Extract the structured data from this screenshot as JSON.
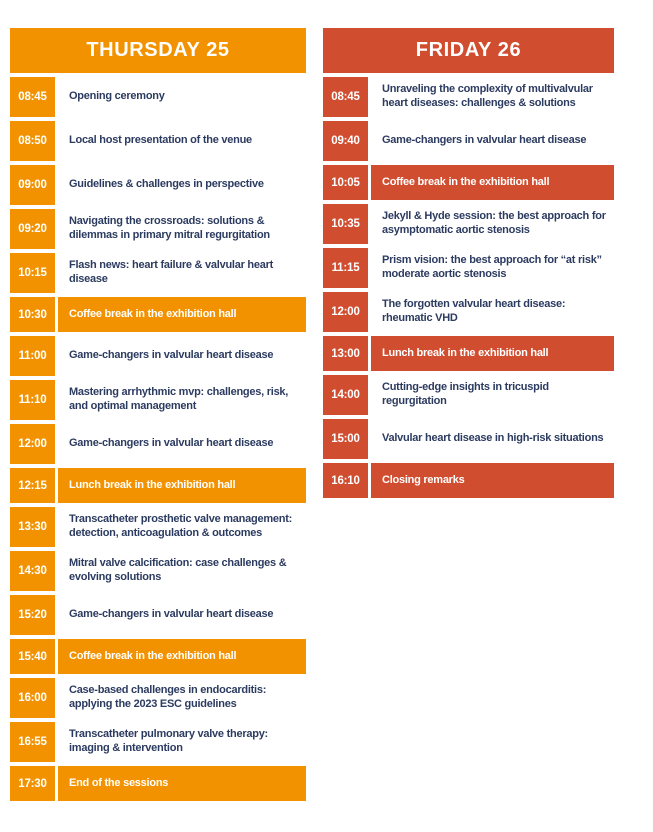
{
  "meta": {
    "background": "#ffffff",
    "text_color": "#2c3b60"
  },
  "columns": [
    {
      "id": "thursday",
      "title": "THURSDAY 25",
      "accent": "#f39200",
      "rows": [
        {
          "time": "08:45",
          "text": "Opening ceremony",
          "highlight": false
        },
        {
          "time": "08:50",
          "text": "Local host presentation of the venue",
          "highlight": false
        },
        {
          "time": "09:00",
          "text": "Guidelines & challenges in perspective",
          "highlight": false
        },
        {
          "time": "09:20",
          "text": "Navigating the crossroads: solutions & dilemmas in primary mitral regurgitation",
          "highlight": false
        },
        {
          "time": "10:15",
          "text": "Flash news: heart failure & valvular heart disease",
          "highlight": false
        },
        {
          "time": "10:30",
          "text": "Coffee break in the exhibition hall",
          "highlight": true
        },
        {
          "time": "11:00",
          "text": "Game-changers in valvular heart disease",
          "highlight": false
        },
        {
          "time": "11:10",
          "text": "Mastering arrhythmic mvp: challenges, risk, and optimal management",
          "highlight": false
        },
        {
          "time": "12:00",
          "text": "Game-changers in valvular heart disease",
          "highlight": false
        },
        {
          "time": "12:15",
          "text": "Lunch break in the exhibition hall",
          "highlight": true
        },
        {
          "time": "13:30",
          "text": "Transcatheter prosthetic valve management: detection, anticoagulation & outcomes",
          "highlight": false
        },
        {
          "time": "14:30",
          "text": "Mitral valve calcification: case challenges & evolving solutions",
          "highlight": false
        },
        {
          "time": "15:20",
          "text": "Game-changers in valvular heart disease",
          "highlight": false
        },
        {
          "time": "15:40",
          "text": "Coffee break in the exhibition hall",
          "highlight": true
        },
        {
          "time": "16:00",
          "text": "Case-based challenges in endocarditis: applying the 2023 ESC guidelines",
          "highlight": false
        },
        {
          "time": "16:55",
          "text": "Transcatheter pulmonary valve therapy: imaging & intervention",
          "highlight": false
        },
        {
          "time": "17:30",
          "text": "End of the sessions",
          "highlight": true
        }
      ]
    },
    {
      "id": "friday",
      "title": "FRIDAY 26",
      "accent": "#d14d30",
      "rows": [
        {
          "time": "08:45",
          "text": "Unraveling the complexity of multivalvular heart diseases: challenges & solutions",
          "highlight": false
        },
        {
          "time": "09:40",
          "text": "Game-changers in valvular heart disease",
          "highlight": false
        },
        {
          "time": "10:05",
          "text": "Coffee break in the exhibition hall",
          "highlight": true
        },
        {
          "time": "10:35",
          "text": "Jekyll & Hyde session: the best approach for asymptomatic aortic stenosis",
          "highlight": false
        },
        {
          "time": "11:15",
          "text": "Prism vision: the best approach for “at risk” moderate aortic stenosis",
          "highlight": false
        },
        {
          "time": "12:00",
          "text": "The forgotten valvular heart disease: rheumatic VHD",
          "highlight": false
        },
        {
          "time": "13:00",
          "text": "Lunch break in the exhibition hall",
          "highlight": true
        },
        {
          "time": "14:00",
          "text": "Cutting-edge insights in tricuspid regurgitation",
          "highlight": false
        },
        {
          "time": "15:00",
          "text": "Valvular heart disease in high-risk situations",
          "highlight": false
        },
        {
          "time": "16:10",
          "text": "Closing remarks",
          "highlight": true
        }
      ]
    }
  ]
}
